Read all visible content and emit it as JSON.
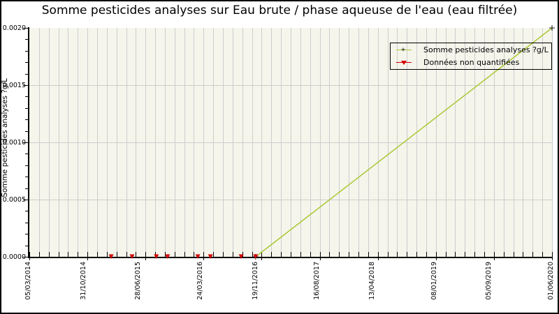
{
  "chart_data": {
    "type": "line",
    "title": "Somme pesticides analyses sur Eau brute / phase aqueuse de l'eau (eau filtrée)",
    "ylabel": "Somme pesticides analyses ?g/L",
    "xlim": [
      "05/03/2014",
      "01/06/2020"
    ],
    "ylim": [
      0.0,
      0.002
    ],
    "yticks": [
      {
        "value": 0.0,
        "label": "0.0000"
      },
      {
        "value": 0.0005,
        "label": "0.0005"
      },
      {
        "value": 0.001,
        "label": "0.0010"
      },
      {
        "value": 0.0015,
        "label": "0.0015"
      },
      {
        "value": 0.002,
        "label": "0.0020"
      }
    ],
    "xticks": [
      "05/03/2014",
      "31/10/2014",
      "28/06/2015",
      "24/03/2016",
      "19/11/2016",
      "16/08/2017",
      "13/04/2018",
      "08/01/2019",
      "05/09/2019",
      "01/06/2020"
    ],
    "x_minor_per_major": 6,
    "y_minor_per_major": 5,
    "grid": {
      "vertical": "minor",
      "horizontal": "major"
    },
    "legend_position": "top-right",
    "style": {
      "plot_bg": "#f5f5ec",
      "grid_color": "#cdcdcd",
      "axis_color": "#000000",
      "outer_border": "#000000",
      "text_color": "#000000"
    },
    "series": [
      {
        "name": "Somme pesticides analyses ?g/L",
        "type": "line-with-point-markers",
        "color": "#a9c934",
        "marker": "black-plus",
        "marker_color": "#1a1a1a",
        "points": [
          {
            "x": "16/11/2016",
            "y": 0.0
          },
          {
            "x": "01/06/2020",
            "y": 0.002
          }
        ]
      },
      {
        "name": "Données non quantifiées",
        "type": "points",
        "color": "#d40000",
        "marker": "red-down-triangle",
        "marker_color": "#d40000",
        "points": [
          {
            "x": "25/02/2015",
            "y": 0
          },
          {
            "x": "27/05/2015",
            "y": 0
          },
          {
            "x": "10/09/2015",
            "y": 0
          },
          {
            "x": "29/10/2015",
            "y": 0
          },
          {
            "x": "09/03/2016",
            "y": 0
          },
          {
            "x": "03/05/2016",
            "y": 0
          },
          {
            "x": "14/09/2016",
            "y": 0
          },
          {
            "x": "16/11/2016",
            "y": 0
          }
        ]
      }
    ]
  }
}
